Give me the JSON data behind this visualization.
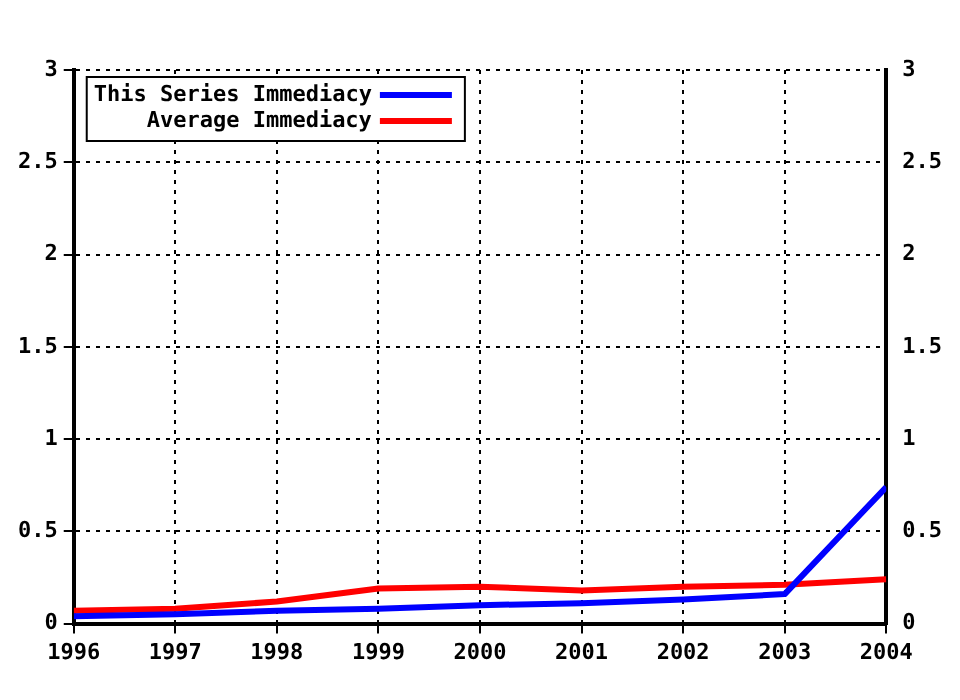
{
  "chart_data": {
    "type": "line",
    "x": [
      1996,
      1997,
      1998,
      1999,
      2000,
      2001,
      2002,
      2003,
      2004
    ],
    "xlim": [
      1996,
      2004
    ],
    "xticks": [
      1996,
      1997,
      1998,
      1999,
      2000,
      2001,
      2002,
      2003,
      2004
    ],
    "ylim": [
      0,
      3
    ],
    "yticks": [
      0,
      0.5,
      1,
      1.5,
      2,
      2.5,
      3
    ],
    "y2lim": [
      0,
      3
    ],
    "y2ticks": [
      0,
      0.5,
      1,
      1.5,
      2,
      2.5,
      3
    ],
    "grid": true,
    "legend": "top left",
    "marker": "none",
    "line_style": "solid",
    "series": [
      {
        "name": "This Series Immediacy",
        "color": "#0000ff",
        "values": [
          0.04,
          0.05,
          0.07,
          0.08,
          0.1,
          0.11,
          0.13,
          0.16,
          0.74
        ]
      },
      {
        "name": "Average Immediacy",
        "color": "#ff0000",
        "values": [
          0.07,
          0.08,
          0.12,
          0.19,
          0.2,
          0.18,
          0.2,
          0.21,
          0.24
        ]
      }
    ]
  }
}
